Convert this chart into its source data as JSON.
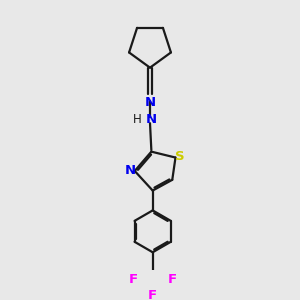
{
  "bg": "#e8e8e8",
  "bc": "#1a1a1a",
  "Nc": "#0000ee",
  "Sc": "#cccc00",
  "Fc": "#ff00ff",
  "figsize": [
    3.0,
    3.0
  ],
  "dpi": 100,
  "lw": 1.6,
  "xlim": [
    0,
    10
  ],
  "ylim": [
    0,
    10
  ]
}
